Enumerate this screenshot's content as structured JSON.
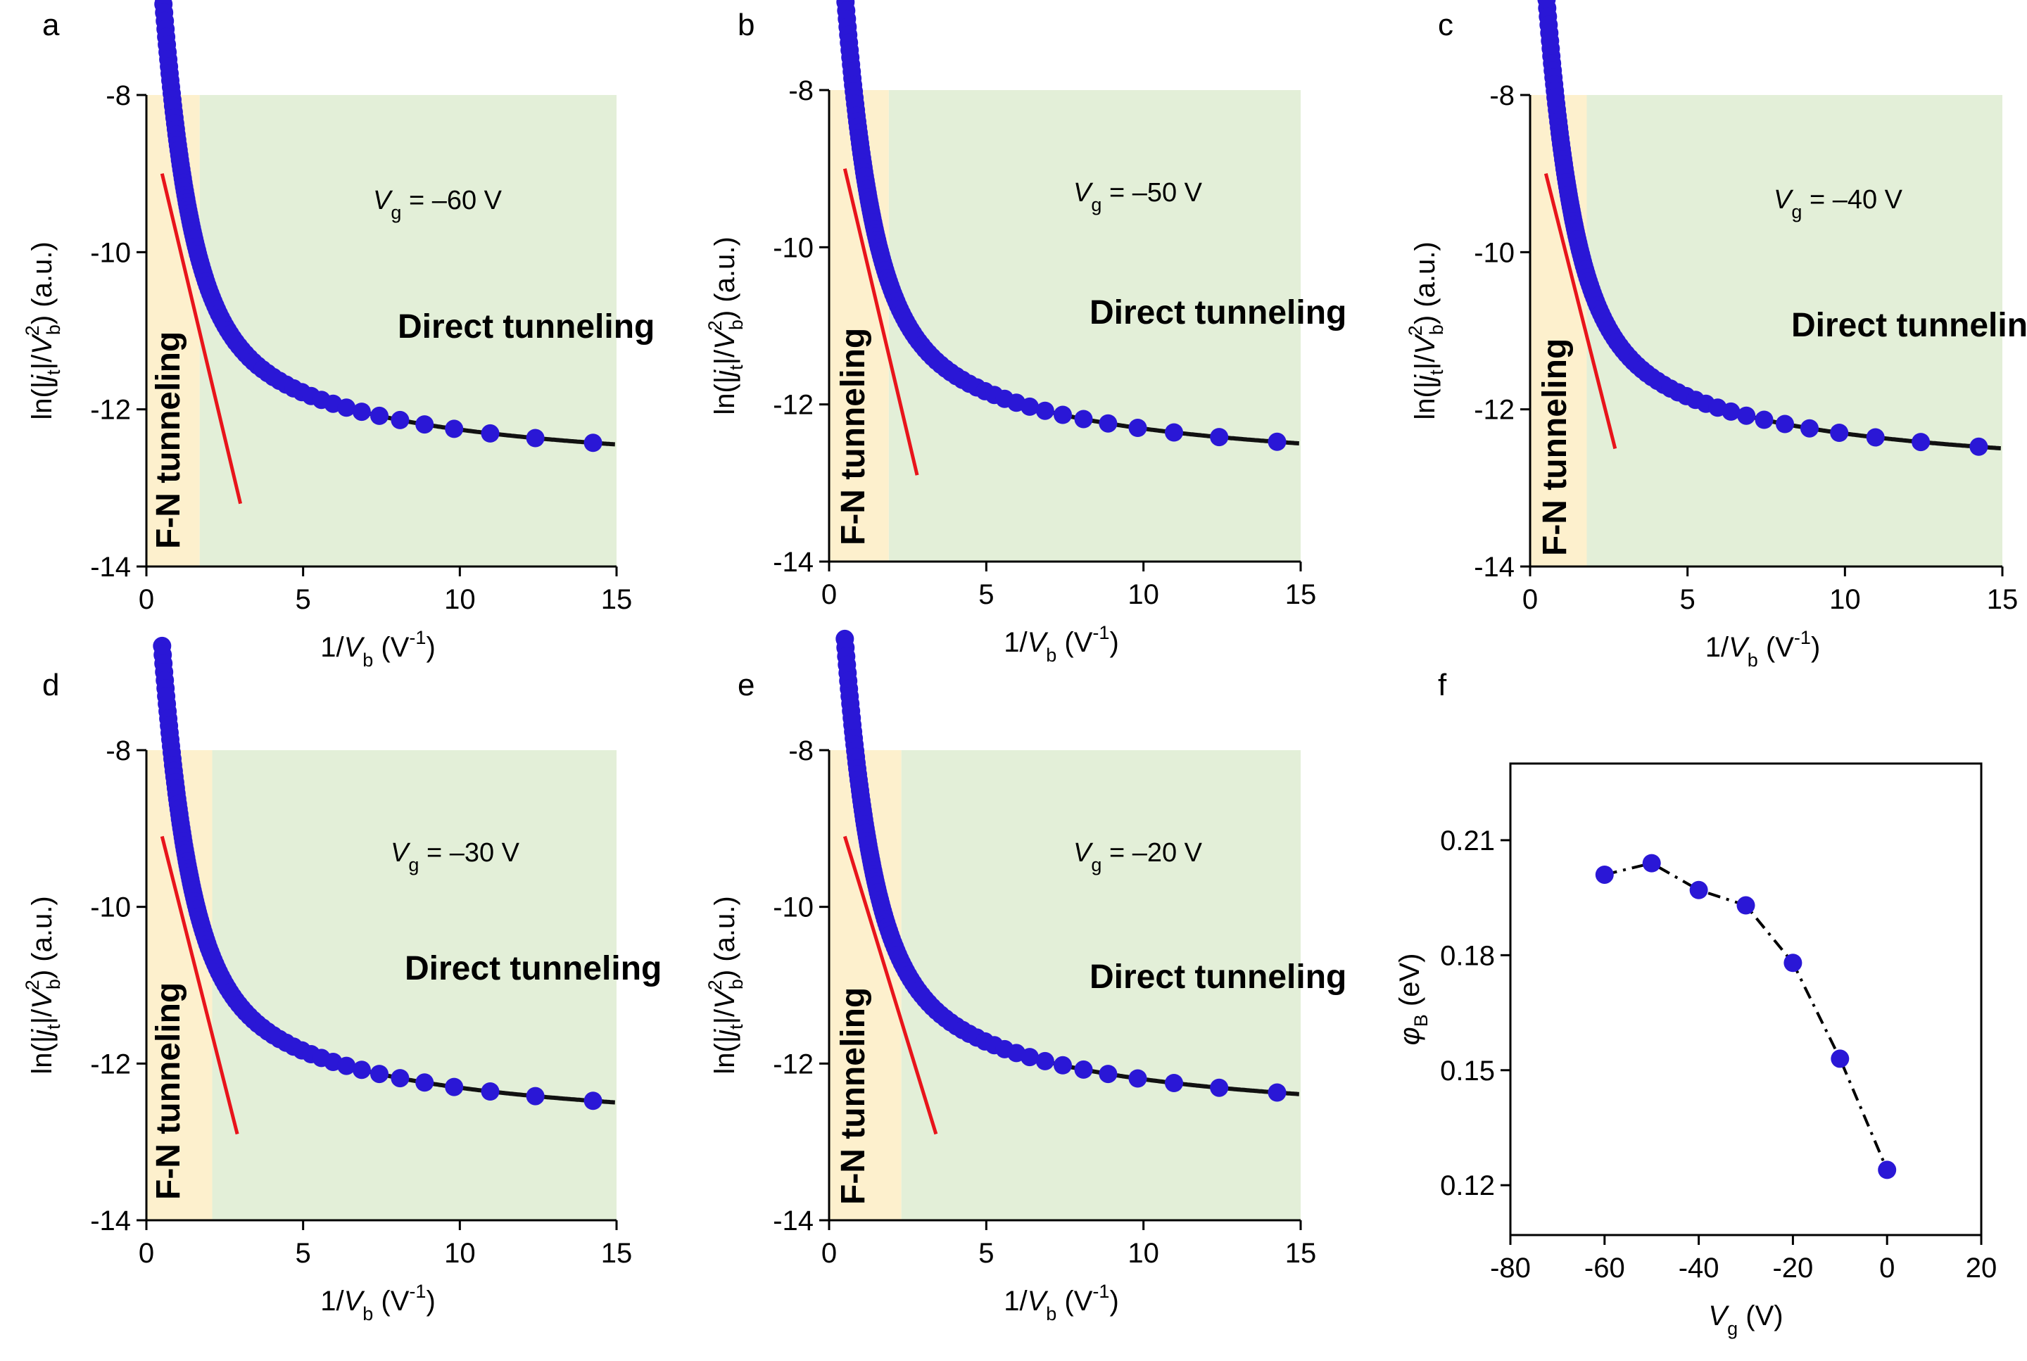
{
  "figure": {
    "panels": [
      "a",
      "b",
      "c",
      "d",
      "e",
      "f"
    ]
  },
  "chart_data": [
    {
      "panel": "a",
      "type": "scatter",
      "xlabel": "1/V_b (V^-1)",
      "ylabel": "ln(|j_t|/V_b^2) (a.u.)",
      "xlim": [
        0,
        15
      ],
      "ylim": [
        -14,
        -8
      ],
      "xticks": [
        0,
        5,
        10,
        15
      ],
      "yticks": [
        -8,
        -10,
        -12,
        -14
      ],
      "regions": [
        {
          "label": "F-N tunneling",
          "x_range": [
            0,
            1.7
          ],
          "color": "#fdf0cd"
        },
        {
          "label": "Direct tunneling",
          "x_range": [
            1.7,
            15
          ],
          "color": "#e3efd8"
        }
      ],
      "annotation": {
        "text": "V_g = –60 V"
      },
      "fit_line": {
        "x": [
          0.5,
          3.0
        ],
        "y": [
          -9.0,
          -13.2
        ],
        "color": "#e8141b"
      },
      "data_shape": {
        "x_start": 0.5,
        "a": 3.2,
        "b": 7.7,
        "c": 12.9,
        "p": 0.8
      },
      "marker_color": "#2a17d6"
    },
    {
      "panel": "b",
      "type": "scatter",
      "xlabel": "1/V_b (V^-1)",
      "ylabel": "ln(|j_t|/V_b^2) (a.u.)",
      "xlim": [
        0,
        15
      ],
      "ylim": [
        -14,
        -8
      ],
      "xticks": [
        0,
        5,
        10,
        15
      ],
      "yticks": [
        -8,
        -10,
        -12,
        -14
      ],
      "regions": [
        {
          "label": "F-N tunneling",
          "x_range": [
            0,
            1.9
          ],
          "color": "#fdf0cd"
        },
        {
          "label": "Direct tunneling",
          "x_range": [
            1.9,
            15
          ],
          "color": "#e3efd8"
        }
      ],
      "annotation": {
        "text": "V_g = –50 V"
      },
      "fit_line": {
        "x": [
          0.5,
          2.8
        ],
        "y": [
          -9.0,
          -12.9
        ],
        "color": "#e8141b"
      },
      "data_shape": {
        "x_start": 0.5,
        "a": 3.1,
        "b": 7.7,
        "c": 12.95,
        "p": 0.8
      },
      "marker_color": "#2a17d6"
    },
    {
      "panel": "c",
      "type": "scatter",
      "xlabel": "1/V_b (V^-1)",
      "ylabel": "ln(|j_t|/V_b^2) (a.u.)",
      "xlim": [
        0,
        15
      ],
      "ylim": [
        -14,
        -8
      ],
      "xticks": [
        0,
        5,
        10,
        15
      ],
      "yticks": [
        -8,
        -10,
        -12,
        -14
      ],
      "regions": [
        {
          "label": "F-N tunneling",
          "x_range": [
            0,
            1.8
          ],
          "color": "#fdf0cd"
        },
        {
          "label": "Direct tunneling",
          "x_range": [
            1.8,
            15
          ],
          "color": "#e3efd8"
        }
      ],
      "annotation": {
        "text": "V_g = –40 V"
      },
      "fit_line": {
        "x": [
          0.5,
          2.7
        ],
        "y": [
          -9.0,
          -12.5
        ],
        "color": "#e8141b"
      },
      "data_shape": {
        "x_start": 0.5,
        "a": 3.2,
        "b": 7.7,
        "c": 12.95,
        "p": 0.8
      },
      "marker_color": "#2a17d6"
    },
    {
      "panel": "d",
      "type": "scatter",
      "xlabel": "1/V_b (V^-1)",
      "ylabel": "ln(|j_t|/V_b^2) (a.u.)",
      "xlim": [
        0,
        15
      ],
      "ylim": [
        -14,
        -8
      ],
      "xticks": [
        0,
        5,
        10,
        15
      ],
      "yticks": [
        -8,
        -10,
        -12,
        -14
      ],
      "regions": [
        {
          "label": "F-N tunneling",
          "x_range": [
            0,
            2.1
          ],
          "color": "#fdf0cd"
        },
        {
          "label": "Direct tunneling",
          "x_range": [
            2.1,
            15
          ],
          "color": "#e3efd8"
        }
      ],
      "annotation": {
        "text": "V_g = –30 V"
      },
      "fit_line": {
        "x": [
          0.5,
          2.9
        ],
        "y": [
          -9.1,
          -12.9
        ],
        "color": "#e8141b"
      },
      "data_shape": {
        "x_start": 0.5,
        "a": 3.2,
        "b": 7.7,
        "c": 12.95,
        "p": 0.8
      },
      "marker_color": "#2a17d6"
    },
    {
      "panel": "e",
      "type": "scatter",
      "xlabel": "1/V_b (V^-1)",
      "ylabel": "ln(|j_t|/V_b^2) (a.u.)",
      "xlim": [
        0,
        15
      ],
      "ylim": [
        -14,
        -8
      ],
      "xticks": [
        0,
        5,
        10,
        15
      ],
      "yticks": [
        -8,
        -10,
        -12,
        -14
      ],
      "regions": [
        {
          "label": "F-N tunneling",
          "x_range": [
            0,
            2.3
          ],
          "color": "#fdf0cd"
        },
        {
          "label": "Direct tunneling",
          "x_range": [
            2.3,
            15
          ],
          "color": "#e3efd8"
        }
      ],
      "annotation": {
        "text": "V_g = –20 V"
      },
      "fit_line": {
        "x": [
          0.5,
          3.4
        ],
        "y": [
          -9.1,
          -12.9
        ],
        "color": "#e8141b"
      },
      "data_shape": {
        "x_start": 0.5,
        "a": 3.15,
        "b": 7.8,
        "c": 12.85,
        "p": 0.8
      },
      "marker_color": "#2a17d6"
    },
    {
      "panel": "f",
      "type": "line",
      "xlabel": "V_g (V)",
      "ylabel": "φ_B (eV)",
      "xlim": [
        -80,
        20
      ],
      "ylim": [
        0.107,
        0.23
      ],
      "xticks": [
        -80,
        -60,
        -40,
        -20,
        0,
        20
      ],
      "yticks": [
        0.12,
        0.15,
        0.18,
        0.21
      ],
      "x": [
        -60,
        -50,
        -40,
        -30,
        -20,
        -10,
        0
      ],
      "y": [
        0.201,
        0.204,
        0.197,
        0.193,
        0.178,
        0.153,
        0.124
      ],
      "line_style": "dash-dot",
      "marker_color": "#2a17d6"
    }
  ]
}
